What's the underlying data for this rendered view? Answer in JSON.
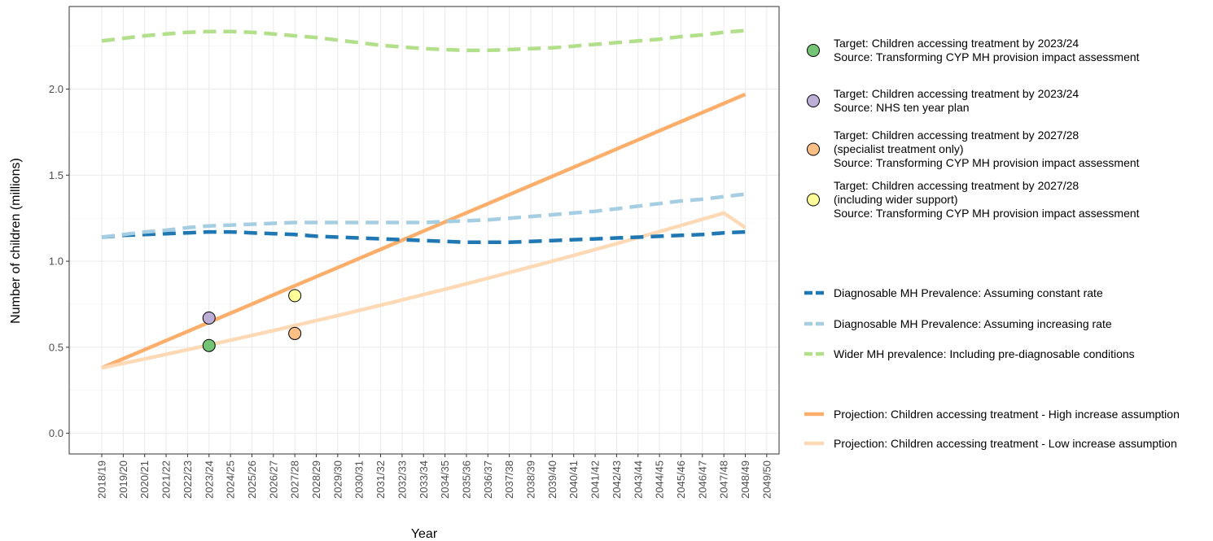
{
  "chart_data": {
    "type": "line",
    "title": "",
    "xlabel": "Year",
    "ylabel": "Number of children (millions)",
    "ylim": [
      -0.12,
      2.48
    ],
    "yticks": [
      0.0,
      0.5,
      1.0,
      1.5,
      2.0
    ],
    "ytick_labels": [
      "0.0",
      "0.5",
      "1.0",
      "1.5",
      "2.0"
    ],
    "grid": true,
    "legend_position": "right",
    "categories": [
      "2018/19",
      "2019/20",
      "2020/21",
      "2021/22",
      "2022/23",
      "2023/24",
      "2024/25",
      "2025/26",
      "2026/27",
      "2027/28",
      "2028/29",
      "2029/30",
      "2030/31",
      "2031/32",
      "2032/33",
      "2033/34",
      "2034/35",
      "2035/36",
      "2036/37",
      "2037/38",
      "2038/39",
      "2039/40",
      "2040/41",
      "2041/42",
      "2042/43",
      "2043/44",
      "2044/45",
      "2045/46",
      "2046/47",
      "2047/48",
      "2048/49",
      "2049/50"
    ],
    "series": [
      {
        "name": "Diagnosable MH Prevalence: Assuming constant rate",
        "style": "dashed",
        "color": "#1f78b4",
        "values": [
          1.14,
          1.15,
          1.155,
          1.16,
          1.165,
          1.17,
          1.17,
          1.165,
          1.16,
          1.155,
          1.145,
          1.14,
          1.135,
          1.13,
          1.125,
          1.12,
          1.115,
          1.11,
          1.11,
          1.11,
          1.115,
          1.12,
          1.125,
          1.13,
          1.135,
          1.14,
          1.145,
          1.15,
          1.155,
          1.165,
          1.17,
          null
        ]
      },
      {
        "name": "Diagnosable MH Prevalence: Assuming increasing rate",
        "style": "dashed",
        "color": "#a6cee3",
        "values": [
          1.14,
          1.155,
          1.17,
          1.18,
          1.195,
          1.205,
          1.21,
          1.215,
          1.22,
          1.225,
          1.225,
          1.225,
          1.225,
          1.225,
          1.225,
          1.225,
          1.23,
          1.235,
          1.24,
          1.25,
          1.26,
          1.27,
          1.28,
          1.29,
          1.305,
          1.32,
          1.335,
          1.35,
          1.36,
          1.375,
          1.39,
          null
        ]
      },
      {
        "name": "Wider MH prevalence: Including pre-diagnosable conditions",
        "style": "dashed",
        "color": "#b2df8a",
        "values": [
          2.28,
          2.295,
          2.31,
          2.32,
          2.33,
          2.335,
          2.335,
          2.33,
          2.32,
          2.31,
          2.3,
          2.285,
          2.27,
          2.255,
          2.245,
          2.235,
          2.23,
          2.225,
          2.225,
          2.23,
          2.235,
          2.24,
          2.25,
          2.26,
          2.27,
          2.28,
          2.29,
          2.305,
          2.315,
          2.33,
          2.34,
          null
        ]
      },
      {
        "name": "Projection: Children accessing treatment - High increase assumption",
        "style": "solid",
        "color": "#fdae6b",
        "values": [
          0.38,
          0.433,
          0.486,
          0.539,
          0.592,
          0.645,
          0.698,
          0.751,
          0.804,
          0.857,
          0.91,
          0.963,
          1.016,
          1.069,
          1.122,
          1.175,
          1.228,
          1.281,
          1.334,
          1.387,
          1.44,
          1.493,
          1.546,
          1.599,
          1.652,
          1.705,
          1.758,
          1.811,
          1.864,
          1.917,
          1.97,
          null
        ]
      },
      {
        "name": "Projection: Children accessing treatment - Low increase assumption",
        "style": "solid",
        "color": "#fdd9b5",
        "values": [
          0.38,
          0.406,
          0.432,
          0.459,
          0.486,
          0.513,
          0.541,
          0.569,
          0.597,
          0.626,
          0.655,
          0.684,
          0.714,
          0.744,
          0.775,
          0.806,
          0.837,
          0.869,
          0.901,
          0.934,
          0.967,
          1.0,
          1.034,
          1.068,
          1.102,
          1.137,
          1.172,
          1.208,
          1.244,
          1.28,
          1.195,
          null
        ]
      }
    ],
    "points": [
      {
        "name": "Target: Children accessing treatment by 2023/24",
        "source": "Source: Transforming CYP MH provision impact assessment",
        "x": "2023/24",
        "y": 0.51,
        "color": "#74c476"
      },
      {
        "name": "Target: Children accessing treatment by 2023/24",
        "source": "Source: NHS ten year plan",
        "x": "2023/24",
        "y": 0.67,
        "color": "#bcaed6"
      },
      {
        "name": "Target: Children accessing treatment by 2027/28",
        "note": "(specialist treatment only)",
        "source": "Source: Transforming CYP MH provision impact assessment",
        "x": "2027/28",
        "y": 0.58,
        "color": "#fdbf85"
      },
      {
        "name": "Target: Children accessing treatment by 2027/28",
        "note": "(including wider support)",
        "source": "Source: Transforming CYP MH provision impact assessment",
        "x": "2027/28",
        "y": 0.8,
        "color": "#ffff99"
      }
    ]
  },
  "legend": {
    "point_items": [
      {
        "lines": [
          "Target: Children accessing treatment by 2023/24",
          "Source: Transforming CYP MH provision impact assessment"
        ],
        "color": "#74c476"
      },
      {
        "lines": [
          "Target: Children accessing treatment by 2023/24",
          "Source: NHS ten year plan"
        ],
        "color": "#bcaed6"
      },
      {
        "lines": [
          "Target: Children accessing treatment by 2027/28",
          "(specialist treatment only)",
          "Source: Transforming CYP MH provision impact assessment"
        ],
        "color": "#fdbf85"
      },
      {
        "lines": [
          "Target: Children accessing treatment by 2027/28",
          "(including wider support)",
          "Source: Transforming CYP MH provision impact assessment"
        ],
        "color": "#ffff99"
      }
    ],
    "line_items": [
      {
        "label": "Diagnosable MH Prevalence: Assuming constant rate",
        "color": "#1f78b4",
        "style": "dashed"
      },
      {
        "label": "Diagnosable MH Prevalence: Assuming increasing rate",
        "color": "#a6cee3",
        "style": "dashed"
      },
      {
        "label": "Wider MH prevalence: Including pre-diagnosable conditions",
        "color": "#b2df8a",
        "style": "dashed"
      },
      {
        "label": "Projection: Children accessing treatment - High increase assumption",
        "color": "#fdae6b",
        "style": "solid"
      },
      {
        "label": "Projection: Children accessing treatment - Low increase assumption",
        "color": "#fdd9b5",
        "style": "solid"
      }
    ]
  }
}
